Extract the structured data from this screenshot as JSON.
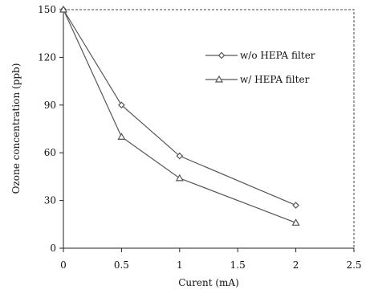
{
  "chart_data": {
    "type": "line",
    "xlabel": "Curent (mA)",
    "ylabel": "Ozone concentration (ppb)",
    "xlim": [
      0,
      2.5
    ],
    "ylim": [
      0,
      150
    ],
    "xticks": [
      0,
      0.5,
      1,
      1.5,
      2,
      2.5
    ],
    "xtick_labels": [
      "0",
      "0.5",
      "1",
      "1.5",
      "2",
      "2.5"
    ],
    "yticks": [
      0,
      30,
      60,
      90,
      120,
      150
    ],
    "ytick_labels": [
      "0",
      "30",
      "60",
      "90",
      "120",
      "150"
    ],
    "grid": false,
    "legend_position": "top-right",
    "series": [
      {
        "name": "w/o HEPA filter",
        "marker": "diamond",
        "color": "#555555",
        "x": [
          0,
          0.5,
          1,
          2
        ],
        "y": [
          150,
          90,
          58,
          27
        ]
      },
      {
        "name": "w/ HEPA filter",
        "marker": "triangle",
        "color": "#555555",
        "x": [
          0,
          0.5,
          1,
          2
        ],
        "y": [
          150,
          70,
          44,
          16
        ]
      }
    ]
  }
}
